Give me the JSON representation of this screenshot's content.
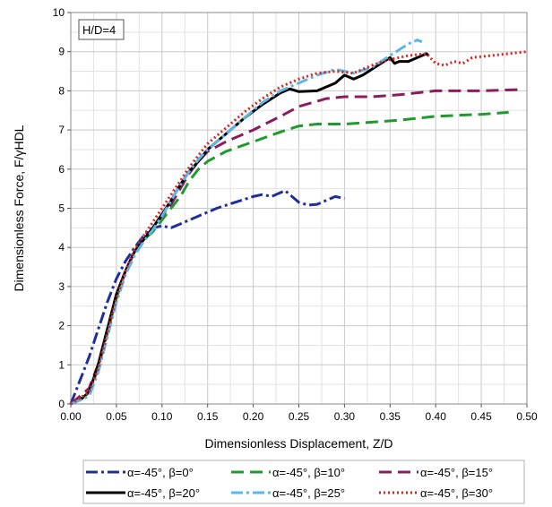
{
  "chart_data": {
    "type": "line",
    "title": "",
    "xlabel": "Dimensionless Displacement, Z/D",
    "ylabel": "Dimensionless Force, F/γHDL",
    "xlim": [
      0,
      0.5
    ],
    "ylim": [
      0,
      10
    ],
    "xticks": [
      "0.00",
      "0.05",
      "0.10",
      "0.15",
      "0.20",
      "0.25",
      "0.30",
      "0.35",
      "0.40",
      "0.45",
      "0.50"
    ],
    "yticks": [
      "0",
      "1",
      "2",
      "3",
      "4",
      "5",
      "6",
      "7",
      "8",
      "9",
      "10"
    ],
    "grid": true,
    "annotation": "H/D=4",
    "legend_position": "bottom",
    "series": [
      {
        "name": "α=-45°, β=0°",
        "color": "#1f2f9a",
        "dash": "dashdot",
        "points": [
          [
            0,
            0
          ],
          [
            0.01,
            0.6
          ],
          [
            0.02,
            1.2
          ],
          [
            0.03,
            1.9
          ],
          [
            0.04,
            2.6
          ],
          [
            0.05,
            3.2
          ],
          [
            0.06,
            3.65
          ],
          [
            0.07,
            4.0
          ],
          [
            0.08,
            4.3
          ],
          [
            0.09,
            4.5
          ],
          [
            0.1,
            4.55
          ],
          [
            0.11,
            4.5
          ],
          [
            0.12,
            4.6
          ],
          [
            0.14,
            4.8
          ],
          [
            0.16,
            5.0
          ],
          [
            0.18,
            5.15
          ],
          [
            0.2,
            5.3
          ],
          [
            0.21,
            5.35
          ],
          [
            0.22,
            5.3
          ],
          [
            0.23,
            5.4
          ],
          [
            0.235,
            5.45
          ],
          [
            0.24,
            5.35
          ],
          [
            0.25,
            5.15
          ],
          [
            0.26,
            5.08
          ],
          [
            0.27,
            5.1
          ],
          [
            0.28,
            5.2
          ],
          [
            0.29,
            5.3
          ],
          [
            0.3,
            5.25
          ]
        ]
      },
      {
        "name": "α=-45°, β=10°",
        "color": "#1e9a2e",
        "dash": "dash",
        "points": [
          [
            0,
            0
          ],
          [
            0.01,
            0.15
          ],
          [
            0.02,
            0.3
          ],
          [
            0.03,
            0.9
          ],
          [
            0.04,
            1.8
          ],
          [
            0.05,
            2.7
          ],
          [
            0.06,
            3.4
          ],
          [
            0.07,
            3.9
          ],
          [
            0.08,
            4.2
          ],
          [
            0.09,
            4.4
          ],
          [
            0.1,
            4.7
          ],
          [
            0.11,
            5.0
          ],
          [
            0.12,
            5.3
          ],
          [
            0.13,
            5.7
          ],
          [
            0.14,
            6.0
          ],
          [
            0.15,
            6.2
          ],
          [
            0.17,
            6.45
          ],
          [
            0.2,
            6.7
          ],
          [
            0.23,
            6.95
          ],
          [
            0.25,
            7.1
          ],
          [
            0.27,
            7.15
          ],
          [
            0.3,
            7.15
          ],
          [
            0.33,
            7.2
          ],
          [
            0.36,
            7.25
          ],
          [
            0.4,
            7.35
          ],
          [
            0.45,
            7.4
          ],
          [
            0.48,
            7.45
          ]
        ]
      },
      {
        "name": "α=-45°, β=15°",
        "color": "#8b1c5e",
        "dash": "dash",
        "points": [
          [
            0,
            0
          ],
          [
            0.01,
            0.2
          ],
          [
            0.02,
            0.4
          ],
          [
            0.03,
            1.0
          ],
          [
            0.04,
            1.9
          ],
          [
            0.05,
            2.8
          ],
          [
            0.06,
            3.4
          ],
          [
            0.07,
            3.9
          ],
          [
            0.08,
            4.2
          ],
          [
            0.09,
            4.5
          ],
          [
            0.1,
            4.8
          ],
          [
            0.11,
            5.1
          ],
          [
            0.12,
            5.5
          ],
          [
            0.13,
            5.9
          ],
          [
            0.14,
            6.2
          ],
          [
            0.15,
            6.45
          ],
          [
            0.17,
            6.7
          ],
          [
            0.2,
            7.0
          ],
          [
            0.23,
            7.35
          ],
          [
            0.25,
            7.6
          ],
          [
            0.28,
            7.8
          ],
          [
            0.3,
            7.85
          ],
          [
            0.33,
            7.85
          ],
          [
            0.36,
            7.9
          ],
          [
            0.4,
            8.0
          ],
          [
            0.45,
            8.0
          ],
          [
            0.49,
            8.03
          ]
        ]
      },
      {
        "name": "α=-45°, β=20°",
        "color": "#000000",
        "dash": "solid",
        "points": [
          [
            0,
            0
          ],
          [
            0.01,
            0.1
          ],
          [
            0.02,
            0.3
          ],
          [
            0.03,
            1.0
          ],
          [
            0.04,
            1.9
          ],
          [
            0.05,
            2.8
          ],
          [
            0.06,
            3.4
          ],
          [
            0.07,
            3.9
          ],
          [
            0.08,
            4.2
          ],
          [
            0.09,
            4.5
          ],
          [
            0.1,
            4.85
          ],
          [
            0.11,
            5.2
          ],
          [
            0.12,
            5.6
          ],
          [
            0.13,
            5.95
          ],
          [
            0.14,
            6.2
          ],
          [
            0.15,
            6.5
          ],
          [
            0.17,
            6.9
          ],
          [
            0.19,
            7.3
          ],
          [
            0.21,
            7.65
          ],
          [
            0.23,
            7.95
          ],
          [
            0.24,
            8.05
          ],
          [
            0.25,
            7.98
          ],
          [
            0.27,
            8.0
          ],
          [
            0.29,
            8.2
          ],
          [
            0.3,
            8.4
          ],
          [
            0.31,
            8.3
          ],
          [
            0.32,
            8.4
          ],
          [
            0.33,
            8.55
          ],
          [
            0.34,
            8.7
          ],
          [
            0.35,
            8.85
          ],
          [
            0.355,
            8.7
          ],
          [
            0.36,
            8.75
          ],
          [
            0.37,
            8.75
          ],
          [
            0.38,
            8.85
          ],
          [
            0.39,
            8.95
          ],
          [
            0.392,
            8.9
          ]
        ]
      },
      {
        "name": "α=-45°, β=25°",
        "color": "#5ab8e8",
        "dash": "dashdot",
        "points": [
          [
            0,
            0
          ],
          [
            0.01,
            0.1
          ],
          [
            0.02,
            0.2
          ],
          [
            0.03,
            0.8
          ],
          [
            0.04,
            1.7
          ],
          [
            0.05,
            2.6
          ],
          [
            0.06,
            3.3
          ],
          [
            0.07,
            3.8
          ],
          [
            0.08,
            4.15
          ],
          [
            0.09,
            4.45
          ],
          [
            0.1,
            4.8
          ],
          [
            0.11,
            5.2
          ],
          [
            0.12,
            5.6
          ],
          [
            0.13,
            5.95
          ],
          [
            0.14,
            6.25
          ],
          [
            0.15,
            6.5
          ],
          [
            0.17,
            6.9
          ],
          [
            0.19,
            7.3
          ],
          [
            0.21,
            7.7
          ],
          [
            0.23,
            8.0
          ],
          [
            0.25,
            8.2
          ],
          [
            0.27,
            8.4
          ],
          [
            0.29,
            8.55
          ],
          [
            0.31,
            8.45
          ],
          [
            0.33,
            8.6
          ],
          [
            0.35,
            8.9
          ],
          [
            0.36,
            9.05
          ],
          [
            0.37,
            9.2
          ],
          [
            0.38,
            9.3
          ],
          [
            0.385,
            9.25
          ]
        ]
      },
      {
        "name": "α=-45°, β=30°",
        "color": "#d9241c",
        "dash": "dot",
        "points": [
          [
            0,
            0
          ],
          [
            0.01,
            0.15
          ],
          [
            0.02,
            0.3
          ],
          [
            0.03,
            0.9
          ],
          [
            0.04,
            1.8
          ],
          [
            0.05,
            2.7
          ],
          [
            0.06,
            3.4
          ],
          [
            0.07,
            3.95
          ],
          [
            0.08,
            4.3
          ],
          [
            0.09,
            4.65
          ],
          [
            0.1,
            5.0
          ],
          [
            0.11,
            5.35
          ],
          [
            0.12,
            5.7
          ],
          [
            0.13,
            6.05
          ],
          [
            0.14,
            6.35
          ],
          [
            0.15,
            6.65
          ],
          [
            0.17,
            7.05
          ],
          [
            0.19,
            7.45
          ],
          [
            0.21,
            7.8
          ],
          [
            0.23,
            8.1
          ],
          [
            0.25,
            8.3
          ],
          [
            0.27,
            8.45
          ],
          [
            0.29,
            8.5
          ],
          [
            0.31,
            8.45
          ],
          [
            0.33,
            8.65
          ],
          [
            0.35,
            8.8
          ],
          [
            0.37,
            8.9
          ],
          [
            0.39,
            8.95
          ],
          [
            0.4,
            8.7
          ],
          [
            0.41,
            8.65
          ],
          [
            0.42,
            8.75
          ],
          [
            0.43,
            8.7
          ],
          [
            0.44,
            8.85
          ],
          [
            0.46,
            8.9
          ],
          [
            0.48,
            8.95
          ],
          [
            0.5,
            9.0
          ]
        ]
      }
    ]
  }
}
